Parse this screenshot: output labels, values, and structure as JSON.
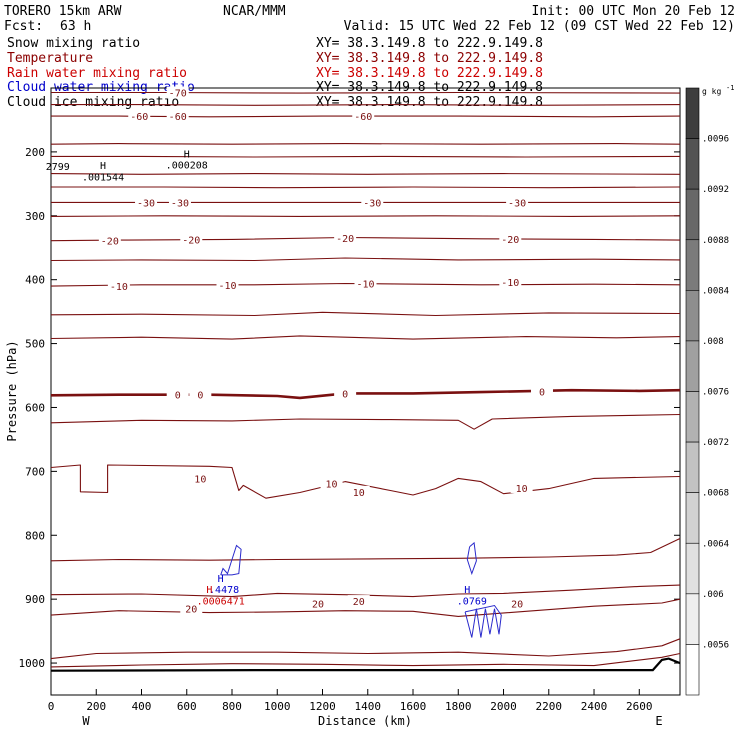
{
  "header": {
    "model": "TORERO  15km ARW",
    "center": "NCAR/MMM",
    "init": "Init: 00 UTC Mon 20 Feb 12",
    "fcst_label": "Fcst:",
    "fcst_value": "63 h",
    "valid": "Valid: 15 UTC Wed 22 Feb 12 (09 CST Wed 22 Feb 12)"
  },
  "legend": [
    {
      "label": "Snow mixing ratio",
      "xy": "XY=  38.3.149.8 to 222.9.149.8",
      "color": "#000000",
      "xy_color": "#000000"
    },
    {
      "label": "Temperature",
      "xy": "XY=  38.3.149.8 to 222.9.149.8",
      "color": "#8b0000",
      "xy_color": "#8b0000"
    },
    {
      "label": "Rain water mixing ratio",
      "xy": "XY=  38.3.149.8 to 222.9.149.8",
      "color": "#cc0000",
      "xy_color": "#cc0000"
    },
    {
      "label": "Cloud water mixing ratio",
      "xy": "XY=  38.3.149.8 to 222.9.149.8",
      "color": "#0000cc",
      "xy_color": "#000000"
    },
    {
      "label": "Cloud ice mixing ratio",
      "xy": "XY=  38.3.149.8 to 222.9.149.8",
      "color": "#000000",
      "xy_color": "#000000"
    }
  ],
  "chart_data": {
    "type": "line",
    "xlabel": "Distance (km)",
    "ylabel": "Pressure (hPa)",
    "xlim": [
      0,
      2780
    ],
    "ylim": [
      1050,
      100
    ],
    "xticks": [
      0,
      200,
      400,
      600,
      800,
      1000,
      1200,
      1400,
      1600,
      1800,
      2000,
      2200,
      2400,
      2600
    ],
    "yticks": [
      200,
      300,
      400,
      500,
      600,
      700,
      800,
      900,
      1000
    ],
    "end_labels": {
      "left": "W",
      "right": "E"
    },
    "temperature_contours": [
      {
        "label_value": -70,
        "points": [
          [
            0,
            107
          ],
          [
            500,
            107
          ],
          [
            1100,
            108
          ],
          [
            1800,
            107
          ],
          [
            2780,
            108
          ]
        ]
      },
      {
        "label_value": null,
        "points": [
          [
            0,
            126
          ],
          [
            400,
            126
          ],
          [
            900,
            127
          ],
          [
            1500,
            126
          ],
          [
            2100,
            127
          ],
          [
            2780,
            126
          ]
        ]
      },
      {
        "label_value": -60,
        "points": [
          [
            0,
            144
          ],
          [
            300,
            144
          ],
          [
            700,
            145
          ],
          [
            1200,
            144
          ],
          [
            1800,
            144
          ],
          [
            2400,
            145
          ],
          [
            2780,
            144
          ]
        ]
      },
      {
        "label_value": null,
        "points": [
          [
            0,
            188
          ],
          [
            300,
            187
          ],
          [
            800,
            188
          ],
          [
            1300,
            187
          ],
          [
            1900,
            188
          ],
          [
            2500,
            187
          ],
          [
            2780,
            188
          ]
        ]
      },
      {
        "label_value": null,
        "points": [
          [
            0,
            207
          ],
          [
            400,
            207
          ],
          [
            900,
            208
          ],
          [
            1500,
            207
          ],
          [
            2100,
            208
          ],
          [
            2780,
            207
          ]
        ]
      },
      {
        "label_value": null,
        "points": [
          [
            0,
            234
          ],
          [
            400,
            235
          ],
          [
            900,
            234
          ],
          [
            1400,
            235
          ],
          [
            2000,
            234
          ],
          [
            2780,
            235
          ]
        ]
      },
      {
        "label_value": null,
        "points": [
          [
            0,
            255
          ],
          [
            500,
            255
          ],
          [
            1000,
            256
          ],
          [
            1600,
            255
          ],
          [
            2200,
            256
          ],
          [
            2780,
            255
          ]
        ]
      },
      {
        "label_value": -30,
        "points": [
          [
            0,
            279
          ],
          [
            500,
            279
          ],
          [
            1100,
            279
          ],
          [
            1700,
            279
          ],
          [
            2300,
            279
          ],
          [
            2780,
            279
          ]
        ]
      },
      {
        "label_value": null,
        "points": [
          [
            0,
            301
          ],
          [
            500,
            300
          ],
          [
            1100,
            301
          ],
          [
            1700,
            300
          ],
          [
            2300,
            301
          ],
          [
            2780,
            300
          ]
        ]
      },
      {
        "label_value": -20,
        "points": [
          [
            0,
            339
          ],
          [
            300,
            338
          ],
          [
            800,
            337
          ],
          [
            1300,
            334
          ],
          [
            1900,
            336
          ],
          [
            2400,
            337
          ],
          [
            2780,
            338
          ]
        ]
      },
      {
        "label_value": null,
        "points": [
          [
            0,
            370
          ],
          [
            400,
            369
          ],
          [
            900,
            370
          ],
          [
            1300,
            366
          ],
          [
            1800,
            369
          ],
          [
            2400,
            368
          ],
          [
            2780,
            369
          ]
        ]
      },
      {
        "label_value": -10,
        "points": [
          [
            0,
            410
          ],
          [
            400,
            408
          ],
          [
            900,
            408
          ],
          [
            1300,
            406
          ],
          [
            1900,
            408
          ],
          [
            2400,
            407
          ],
          [
            2780,
            408
          ]
        ]
      },
      {
        "label_value": null,
        "points": [
          [
            0,
            455
          ],
          [
            400,
            454
          ],
          [
            900,
            456
          ],
          [
            1200,
            451
          ],
          [
            1700,
            456
          ],
          [
            2200,
            452
          ],
          [
            2780,
            453
          ]
        ]
      },
      {
        "label_value": null,
        "points": [
          [
            0,
            492
          ],
          [
            400,
            490
          ],
          [
            800,
            493
          ],
          [
            1100,
            488
          ],
          [
            1600,
            493
          ],
          [
            2100,
            489
          ],
          [
            2500,
            491
          ],
          [
            2780,
            489
          ]
        ]
      },
      {
        "label_value": 0,
        "bold": true,
        "points": [
          [
            0,
            581
          ],
          [
            300,
            580
          ],
          [
            700,
            580
          ],
          [
            1000,
            582
          ],
          [
            1100,
            585
          ],
          [
            1300,
            578
          ],
          [
            1600,
            578
          ],
          [
            1900,
            576
          ],
          [
            2300,
            573
          ],
          [
            2600,
            574
          ],
          [
            2780,
            573
          ]
        ]
      },
      {
        "label_value": null,
        "points": [
          [
            0,
            624
          ],
          [
            400,
            620
          ],
          [
            800,
            621
          ],
          [
            1100,
            618
          ],
          [
            1500,
            619
          ],
          [
            1800,
            620
          ],
          [
            1870,
            634
          ],
          [
            1950,
            618
          ],
          [
            2300,
            614
          ],
          [
            2780,
            611
          ]
        ]
      },
      {
        "label_value": 10,
        "points": [
          [
            0,
            694
          ],
          [
            130,
            690
          ],
          [
            130,
            732
          ],
          [
            250,
            733
          ],
          [
            250,
            690
          ],
          [
            700,
            692
          ],
          [
            800,
            694
          ],
          [
            830,
            730
          ],
          [
            850,
            722
          ],
          [
            950,
            742
          ],
          [
            1100,
            733
          ],
          [
            1300,
            716
          ],
          [
            1500,
            730
          ],
          [
            1600,
            737
          ],
          [
            1700,
            727
          ],
          [
            1800,
            711
          ],
          [
            1900,
            716
          ],
          [
            2000,
            735
          ],
          [
            2200,
            727
          ],
          [
            2400,
            711
          ],
          [
            2780,
            708
          ]
        ]
      },
      {
        "label_value": null,
        "points": [
          [
            0,
            840
          ],
          [
            300,
            838
          ],
          [
            700,
            839
          ],
          [
            1000,
            838
          ],
          [
            1400,
            837
          ],
          [
            1800,
            836
          ],
          [
            2200,
            834
          ],
          [
            2500,
            831
          ],
          [
            2650,
            827
          ],
          [
            2780,
            805
          ]
        ]
      },
      {
        "label_value": 20,
        "points": [
          [
            0,
            893
          ],
          [
            400,
            892
          ],
          [
            800,
            896
          ],
          [
            1000,
            891
          ],
          [
            1300,
            893
          ],
          [
            1600,
            896
          ],
          [
            1800,
            892
          ],
          [
            2000,
            891
          ],
          [
            2300,
            886
          ],
          [
            2600,
            880
          ],
          [
            2780,
            878
          ]
        ]
      },
      {
        "label_value": null,
        "points": [
          [
            0,
            925
          ],
          [
            300,
            918
          ],
          [
            700,
            921
          ],
          [
            1000,
            920
          ],
          [
            1300,
            918
          ],
          [
            1600,
            919
          ],
          [
            1800,
            927
          ],
          [
            2100,
            919
          ],
          [
            2400,
            911
          ],
          [
            2700,
            906
          ],
          [
            2780,
            900
          ]
        ]
      },
      {
        "label_value": null,
        "points": [
          [
            0,
            993
          ],
          [
            200,
            985
          ],
          [
            600,
            983
          ],
          [
            1000,
            983
          ],
          [
            1400,
            985
          ],
          [
            1800,
            983
          ],
          [
            2200,
            989
          ],
          [
            2500,
            982
          ],
          [
            2700,
            973
          ],
          [
            2780,
            962
          ]
        ]
      },
      {
        "label_value": null,
        "points": [
          [
            0,
            1006
          ],
          [
            400,
            1003
          ],
          [
            800,
            1001
          ],
          [
            1200,
            1002
          ],
          [
            1600,
            1004
          ],
          [
            2000,
            1002
          ],
          [
            2400,
            1004
          ],
          [
            2700,
            991
          ],
          [
            2780,
            985
          ]
        ]
      }
    ],
    "ground_pressure": [
      [
        0,
        1012
      ],
      [
        1000,
        1011
      ],
      [
        2000,
        1011
      ],
      [
        2660,
        1011
      ],
      [
        2700,
        995
      ],
      [
        2730,
        993
      ],
      [
        2780,
        1000
      ]
    ],
    "cloud_water_contours": [
      {
        "points": [
          [
            750,
            862
          ],
          [
            760,
            852
          ],
          [
            780,
            860
          ],
          [
            800,
            838
          ],
          [
            820,
            816
          ],
          [
            840,
            822
          ],
          [
            830,
            860
          ],
          [
            800,
            862
          ],
          [
            750,
            862
          ]
        ]
      },
      {
        "points": [
          [
            1850,
            818
          ],
          [
            1870,
            812
          ],
          [
            1880,
            840
          ],
          [
            1860,
            860
          ],
          [
            1840,
            838
          ],
          [
            1850,
            818
          ]
        ]
      },
      {
        "points": [
          [
            1830,
            920
          ],
          [
            1860,
            960
          ],
          [
            1880,
            915
          ],
          [
            1900,
            960
          ],
          [
            1920,
            915
          ],
          [
            1940,
            955
          ],
          [
            1960,
            915
          ],
          [
            1980,
            955
          ],
          [
            1990,
            925
          ],
          [
            1960,
            910
          ],
          [
            1830,
            920
          ]
        ]
      }
    ],
    "temperature_labels": [
      {
        "text": "-70",
        "x": 560,
        "p": 107
      },
      {
        "text": "-60",
        "x": 390,
        "p": 144
      },
      {
        "text": "-60",
        "x": 560,
        "p": 144
      },
      {
        "text": "-60",
        "x": 1380,
        "p": 144
      },
      {
        "text": "-30",
        "x": 420,
        "p": 279
      },
      {
        "text": "-30",
        "x": 570,
        "p": 279
      },
      {
        "text": "-30",
        "x": 1420,
        "p": 279
      },
      {
        "text": "-30",
        "x": 2060,
        "p": 279
      },
      {
        "text": "-20",
        "x": 260,
        "p": 339
      },
      {
        "text": "-20",
        "x": 620,
        "p": 337
      },
      {
        "text": "-20",
        "x": 1300,
        "p": 335
      },
      {
        "text": "-20",
        "x": 2030,
        "p": 336
      },
      {
        "text": "-10",
        "x": 300,
        "p": 410
      },
      {
        "text": "-10",
        "x": 780,
        "p": 408
      },
      {
        "text": "-10",
        "x": 1390,
        "p": 406
      },
      {
        "text": "-10",
        "x": 2030,
        "p": 404
      },
      {
        "text": "0",
        "x": 560,
        "p": 580
      },
      {
        "text": "0",
        "x": 660,
        "p": 580
      },
      {
        "text": "0",
        "x": 1300,
        "p": 578
      },
      {
        "text": "0",
        "x": 2170,
        "p": 575
      },
      {
        "text": "10",
        "x": 660,
        "p": 711
      },
      {
        "text": "10",
        "x": 1240,
        "p": 719
      },
      {
        "text": "10",
        "x": 1360,
        "p": 732
      },
      {
        "text": "10",
        "x": 2080,
        "p": 726
      },
      {
        "text": "20",
        "x": 620,
        "p": 915
      },
      {
        "text": "20",
        "x": 1180,
        "p": 907
      },
      {
        "text": "20",
        "x": 1360,
        "p": 903
      },
      {
        "text": "20",
        "x": 2060,
        "p": 907
      }
    ],
    "annotations": [
      {
        "text": "2799",
        "x": 30,
        "p": 228,
        "color": "#000000"
      },
      {
        "text": "H",
        "x": 230,
        "p": 227,
        "color": "#000000"
      },
      {
        "text": ".001544",
        "x": 230,
        "p": 245,
        "color": "#000000"
      },
      {
        "text": "H",
        "x": 600,
        "p": 209,
        "color": "#000000"
      },
      {
        "text": ".000208",
        "x": 600,
        "p": 226,
        "color": "#000000"
      },
      {
        "text": "H",
        "x": 750,
        "p": 873,
        "color": "#0000cc"
      },
      {
        "text": ".4478",
        "x": 765,
        "p": 890,
        "color": "#0000cc"
      },
      {
        "text": "H",
        "x": 700,
        "p": 890,
        "color": "#cc0000"
      },
      {
        "text": ".0006471",
        "x": 750,
        "p": 908,
        "color": "#cc0000"
      },
      {
        "text": "H",
        "x": 1840,
        "p": 890,
        "color": "#0000cc"
      },
      {
        "text": ".0769",
        "x": 1860,
        "p": 908,
        "color": "#0000cc"
      }
    ],
    "colorbar": {
      "unit": "g kg",
      "unit_exp": "-1",
      "tick_labels": [
        ".0096",
        ".0092",
        ".0088",
        ".0084",
        ".008",
        ".0076",
        ".0072",
        ".0068",
        ".0064",
        ".006",
        ".0056"
      ],
      "colors": [
        "#3e3e3e",
        "#535353",
        "#686868",
        "#7b7b7b",
        "#8e8e8e",
        "#a0a0a0",
        "#b2b2b2",
        "#c2c2c2",
        "#d2d2d2",
        "#e0e0e0",
        "#eeeeee",
        "#ffffff"
      ]
    }
  }
}
